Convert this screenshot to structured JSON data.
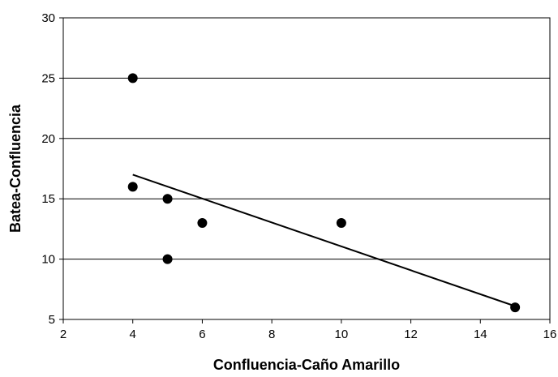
{
  "chart_data": {
    "type": "scatter",
    "xlabel": "Confluencia-Caño Amarillo",
    "ylabel": "Batea-Confluencia",
    "xlim": [
      2,
      16
    ],
    "ylim": [
      5,
      30
    ],
    "x_ticks": [
      2,
      4,
      6,
      8,
      10,
      12,
      14,
      16
    ],
    "y_ticks": [
      5,
      10,
      15,
      20,
      25,
      30
    ],
    "grid": "horizontal",
    "legend": "none",
    "series": [
      {
        "points": [
          {
            "x": 4,
            "y": 25
          },
          {
            "x": 4,
            "y": 16
          },
          {
            "x": 5,
            "y": 15
          },
          {
            "x": 5,
            "y": 10
          },
          {
            "x": 6,
            "y": 13
          },
          {
            "x": 10,
            "y": 13
          },
          {
            "x": 15,
            "y": 6
          }
        ],
        "color": "#000000"
      }
    ],
    "trendline": {
      "type": "linear",
      "x": [
        4,
        15
      ],
      "y": [
        17,
        6.1
      ],
      "color": "#000000"
    }
  }
}
